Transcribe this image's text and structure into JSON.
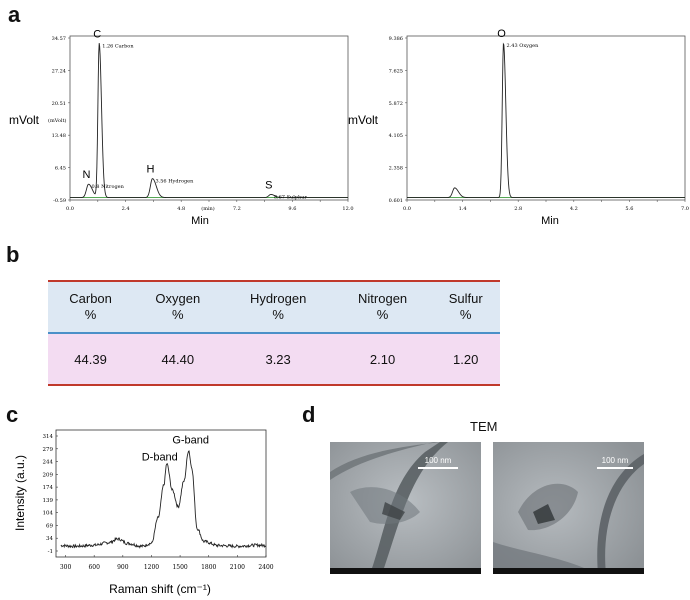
{
  "panels": {
    "a": "a",
    "b": "b",
    "c": "c",
    "d": "d"
  },
  "chart_data": [
    {
      "type": "line",
      "panel": "a",
      "ylabel": "mVolt",
      "ylabel_unit": "(mVolt)",
      "xlabel": "Min",
      "xlabel_unit": "(min)",
      "y_ticks": [
        "34.57",
        "27.24",
        "20.51",
        "13.48",
        "6.45",
        "-0.59"
      ],
      "x_ticks": [
        "0.0",
        "1.2",
        "2.4",
        "3.6",
        "4.8",
        "6.0",
        "7.2",
        "8.4",
        "9.6",
        "10.8",
        "12.0"
      ],
      "x_tick_values": [
        0.0,
        1.2,
        2.4,
        3.6,
        4.8,
        6.0,
        7.2,
        8.4,
        9.6,
        10.8,
        12.0
      ],
      "x_tick_labeled": [
        true,
        false,
        true,
        false,
        true,
        false,
        true,
        false,
        true,
        false,
        true
      ],
      "ylim": [
        -0.59,
        34.57
      ],
      "xlim": [
        0,
        12
      ],
      "peaks": [
        {
          "element": "N",
          "time": 0.8,
          "height": 2.8,
          "label": "0.8 Nitrogen"
        },
        {
          "element": "C",
          "time": 1.26,
          "height": 33.0,
          "label": "1.26 Carbon"
        },
        {
          "element": "H",
          "time": 3.56,
          "height": 4.0,
          "label": "3.56 Hydrogen"
        },
        {
          "element": "S",
          "time": 8.67,
          "height": 0.6,
          "label": "8.67 Sulphur"
        }
      ]
    },
    {
      "type": "line",
      "panel": "a",
      "ylabel": "mVolt",
      "xlabel": "Min",
      "y_ticks": [
        "9.386",
        "7.625",
        "5.872",
        "4.105",
        "2.358",
        "0.601"
      ],
      "x_ticks": [
        "0.0",
        "0.7",
        "1.4",
        "2.1",
        "2.8",
        "3.5",
        "4.2",
        "4.9",
        "5.6",
        "6.3",
        "7.0"
      ],
      "x_tick_values": [
        0.0,
        0.7,
        1.4,
        2.1,
        2.8,
        3.5,
        4.2,
        4.9,
        5.6,
        6.3,
        7.0
      ],
      "x_tick_labeled": [
        true,
        false,
        true,
        false,
        true,
        false,
        true,
        false,
        true,
        false,
        true
      ],
      "ylim": [
        0.601,
        9.386
      ],
      "xlim": [
        0,
        7
      ],
      "peaks": [
        {
          "element": "",
          "time": 1.2,
          "height": 1.25,
          "label": ""
        },
        {
          "element": "O",
          "time": 2.43,
          "height": 9.0,
          "label": "2.43 Oxygen"
        }
      ]
    },
    {
      "type": "table",
      "panel": "b",
      "columns": [
        {
          "name": "Carbon",
          "unit": "%"
        },
        {
          "name": "Oxygen",
          "unit": "%"
        },
        {
          "name": "Hydrogen",
          "unit": "%"
        },
        {
          "name": "Nitrogen",
          "unit": "%"
        },
        {
          "name": "Sulfur",
          "unit": "%"
        }
      ],
      "values": [
        "44.39",
        "44.40",
        "3.23",
        "2.10",
        "1.20"
      ]
    },
    {
      "type": "line",
      "panel": "c",
      "xlabel": "Raman shift (cm⁻¹)",
      "ylabel": "Intensity (a.u.)",
      "y_ticks": [
        "314",
        "279",
        "244",
        "209",
        "174",
        "139",
        "104",
        "69",
        "34",
        "-1"
      ],
      "x_ticks": [
        "300",
        "600",
        "900",
        "1200",
        "1500",
        "1800",
        "2100",
        "2400"
      ],
      "ylim": [
        -1,
        314
      ],
      "xlim": [
        200,
        2400
      ],
      "annotations": [
        {
          "text": "D-band",
          "x": 1350
        },
        {
          "text": "G-band",
          "x": 1590
        }
      ],
      "x": [
        250,
        400,
        600,
        750,
        850,
        950,
        1100,
        1200,
        1270,
        1330,
        1360,
        1420,
        1480,
        1540,
        1590,
        1620,
        1680,
        1750,
        1900,
        2100,
        2300,
        2400
      ],
      "y": [
        14,
        12,
        15,
        22,
        32,
        20,
        12,
        20,
        90,
        180,
        238,
        165,
        120,
        190,
        275,
        230,
        60,
        25,
        14,
        12,
        15,
        14
      ]
    }
  ],
  "tem": {
    "title": "TEM",
    "scale_left": "100 nm",
    "scale_right": "100 nm"
  }
}
